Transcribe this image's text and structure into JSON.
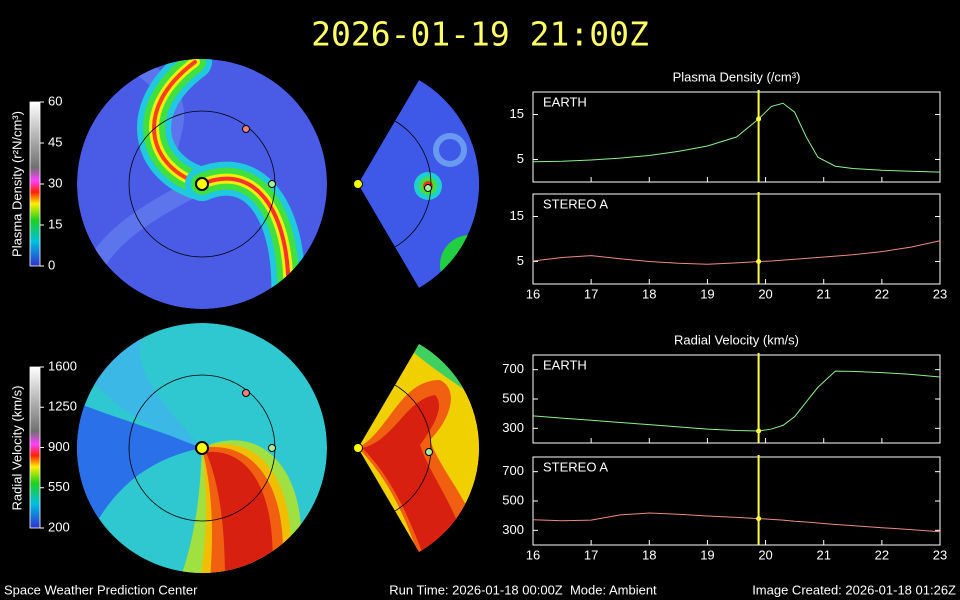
{
  "title": "2026-01-19 21:00Z",
  "maps": {
    "density": {
      "label": "Plasma Density (r²N/cm³)",
      "ylim": [
        0,
        60
      ],
      "yticks": [
        0,
        15,
        30,
        45,
        60
      ]
    },
    "velocity": {
      "label": "Radial Velocity (km/s)",
      "ylim": [
        200,
        1600
      ],
      "yticks": [
        200,
        550,
        900,
        1250,
        1600
      ]
    }
  },
  "chart_data": [
    {
      "type": "line",
      "title": "Plasma Density (/cm³)",
      "panel_label": "EARTH",
      "x": [
        16,
        16.5,
        17,
        17.5,
        18,
        18.5,
        19,
        19.5,
        19.88,
        20.1,
        20.3,
        20.5,
        20.7,
        20.9,
        21.2,
        21.5,
        22,
        22.5,
        23
      ],
      "series": [
        {
          "color": "#8ef08e",
          "values": [
            4.5,
            4.6,
            4.9,
            5.3,
            5.9,
            6.8,
            8.0,
            10.0,
            14.0,
            16.8,
            17.5,
            15.5,
            10.0,
            5.5,
            3.5,
            3.0,
            2.6,
            2.4,
            2.2
          ]
        }
      ],
      "xlim": [
        16,
        23
      ],
      "ylim": [
        0,
        20
      ],
      "yticks": [
        5,
        15
      ],
      "marker_x": 19.88,
      "marker_color": "#ffff44"
    },
    {
      "type": "line",
      "panel_label": "STEREO A",
      "x": [
        16,
        16.5,
        17,
        17.5,
        18,
        18.5,
        19,
        19.5,
        19.88,
        20.1,
        20.3,
        20.5,
        20.7,
        20.9,
        21.2,
        21.5,
        22,
        22.5,
        23
      ],
      "series": [
        {
          "color": "#f08a80",
          "values": [
            5.1,
            5.9,
            6.3,
            5.6,
            5.0,
            4.6,
            4.4,
            4.7,
            5.0,
            5.1,
            5.3,
            5.5,
            5.7,
            5.9,
            6.2,
            6.5,
            7.2,
            8.2,
            9.6
          ]
        }
      ],
      "xlim": [
        16,
        23
      ],
      "ylim": [
        0,
        20
      ],
      "yticks": [
        5,
        15
      ],
      "xticks": [
        16,
        17,
        18,
        19,
        20,
        21,
        22,
        23
      ],
      "marker_x": 19.88,
      "marker_color": "#ffff44"
    },
    {
      "type": "line",
      "title": "Radial Velocity (km/s)",
      "panel_label": "EARTH",
      "x": [
        16,
        16.5,
        17,
        17.5,
        18,
        18.5,
        19,
        19.5,
        19.88,
        20.1,
        20.3,
        20.5,
        20.7,
        20.9,
        21.2,
        21.5,
        22,
        22.5,
        23
      ],
      "series": [
        {
          "color": "#8ef08e",
          "values": [
            385,
            370,
            355,
            340,
            325,
            310,
            295,
            285,
            282,
            295,
            320,
            380,
            480,
            580,
            690,
            688,
            680,
            668,
            650
          ]
        }
      ],
      "xlim": [
        16,
        23
      ],
      "ylim": [
        200,
        800
      ],
      "yticks": [
        300,
        500,
        700
      ],
      "marker_x": 19.88,
      "marker_color": "#ffff44"
    },
    {
      "type": "line",
      "panel_label": "STEREO A",
      "x": [
        16,
        16.5,
        17,
        17.5,
        18,
        18.5,
        19,
        19.5,
        19.88,
        20.1,
        20.3,
        20.5,
        20.7,
        20.9,
        21.2,
        21.5,
        22,
        22.5,
        23
      ],
      "series": [
        {
          "color": "#f08a80",
          "values": [
            372,
            365,
            370,
            405,
            418,
            410,
            398,
            388,
            380,
            375,
            370,
            362,
            357,
            350,
            340,
            332,
            318,
            305,
            290
          ]
        }
      ],
      "xlim": [
        16,
        23
      ],
      "ylim": [
        200,
        800
      ],
      "yticks": [
        300,
        500,
        700
      ],
      "xticks": [
        16,
        17,
        18,
        19,
        20,
        21,
        22,
        23
      ],
      "marker_x": 19.88,
      "marker_color": "#ffff44"
    }
  ],
  "footer": {
    "left": "Space Weather Prediction Center",
    "center": "Run Time: 2026-01-18 00:00Z  Mode: Ambient",
    "right": "Image Created: 2026-01-18 01:26Z"
  }
}
